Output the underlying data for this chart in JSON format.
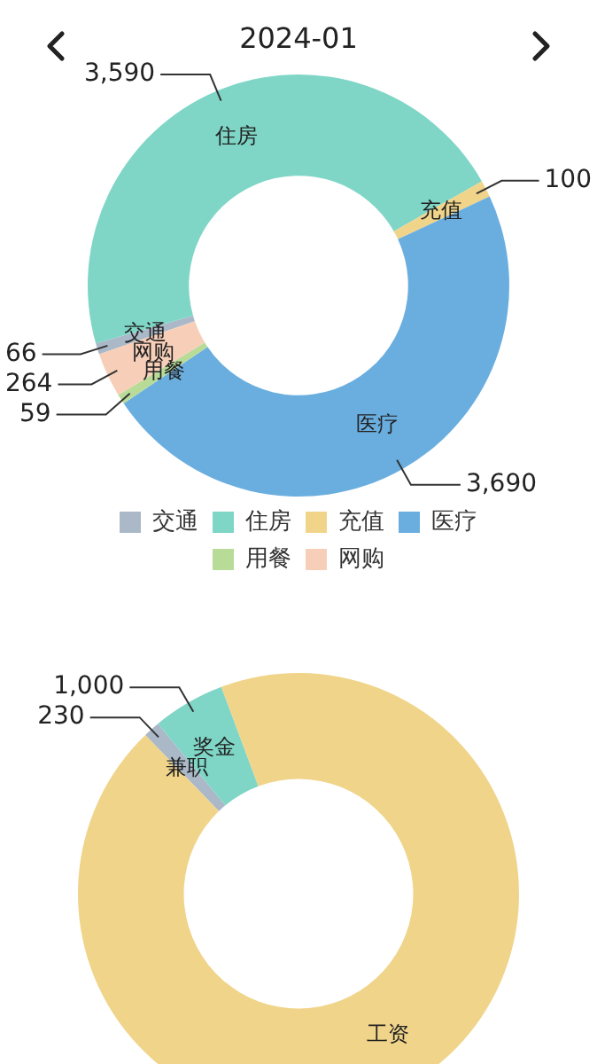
{
  "chart_data": [
    {
      "type": "donut",
      "title": "2024-01",
      "categories": [
        "交通",
        "住房",
        "充值",
        "医疗",
        "用餐",
        "网购"
      ],
      "values": [
        66,
        3590,
        100,
        3690,
        59,
        264
      ],
      "colors": [
        "#aab8c8",
        "#7fd6c6",
        "#f0d48a",
        "#6aaee0",
        "#b8dc98",
        "#f7cfb8"
      ],
      "value_labels": [
        "66",
        "3,590",
        "100",
        "3,690",
        "59",
        "264"
      ],
      "legend": "bottom"
    },
    {
      "type": "donut",
      "categories": [
        "兼职",
        "奖金",
        "工资"
      ],
      "values": [
        230,
        1000,
        17600
      ],
      "colors": [
        "#aab8c8",
        "#7fd6c6",
        "#f0d48a"
      ],
      "value_labels": [
        "230",
        "1,000",
        null
      ]
    }
  ]
}
